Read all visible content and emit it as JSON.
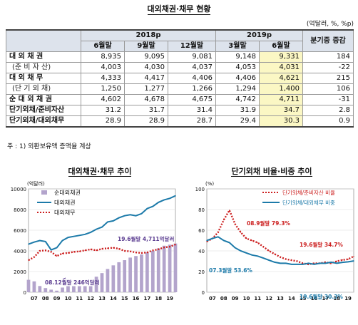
{
  "title": "대외채권·채무 현황",
  "unit": "(억달러, %, %p)",
  "table": {
    "head_years": [
      "2018p",
      "2019p"
    ],
    "head_last": "분기중 증감",
    "head_periods": [
      "6월말",
      "9월말",
      "12월말",
      "3월말",
      "6월말"
    ],
    "rows": [
      {
        "label": "대 외 채 권",
        "values": [
          "8,935",
          "9,095",
          "9,081",
          "9,148",
          "9,331"
        ],
        "change": "184",
        "kind": "main"
      },
      {
        "label": "(준 비 자 산)",
        "values": [
          "4,003",
          "4,030",
          "4,037",
          "4,053",
          "4,031"
        ],
        "change": "-22",
        "kind": "sub"
      },
      {
        "label": "대 외 채 무",
        "values": [
          "4,333",
          "4,417",
          "4,406",
          "4,406",
          "4,621"
        ],
        "change": "215",
        "kind": "main"
      },
      {
        "label": "(단 기 외 채)",
        "values": [
          "1,250",
          "1,277",
          "1,266",
          "1,294",
          "1,400"
        ],
        "change": "106",
        "kind": "sub"
      },
      {
        "label": "순 대 외 채 권",
        "values": [
          "4,602",
          "4,678",
          "4,675",
          "4,742",
          "4,711"
        ],
        "change": "-31",
        "kind": "main"
      },
      {
        "label": "단기외채/준비자산",
        "values": [
          "31.2",
          "31.7",
          "31.4",
          "31.9",
          "34.7"
        ],
        "change": "2.8",
        "kind": "main"
      },
      {
        "label": "단기외채/대외채무",
        "values": [
          "28.9",
          "28.9",
          "28.7",
          "29.4",
          "30.3"
        ],
        "change": "0.9",
        "kind": "main"
      }
    ]
  },
  "note": "주 : 1) 외환보유액 증액율 계상",
  "colors": {
    "bar": "#b3a4cc",
    "claims": "#1c7aa9",
    "debt": "#cc1f1f",
    "ratio_reserve": "#cc1f1f",
    "ratio_debt": "#1c7aa9",
    "highlight": "#fbf7c4",
    "header": "#dde3ec"
  },
  "chart_data": [
    {
      "type": "line",
      "title": "대외채권·채무 추이",
      "ylabel": "(억달러)",
      "ylim": [
        0,
        10000
      ],
      "yticks": [
        "0",
        "2000",
        "4000",
        "6000",
        "8000",
        "10000"
      ],
      "xticks": [
        "07",
        "08",
        "09",
        "10",
        "11",
        "12",
        "13",
        "14",
        "15",
        "16",
        "17",
        "18",
        "19"
      ],
      "x_range": [
        2006.5,
        2019.5
      ],
      "legend": [
        "순대외채권",
        "대외채권",
        "대외채무"
      ],
      "series": [
        {
          "name": "순대외채권",
          "style": "bar",
          "x": [
            2006.5,
            2007,
            2007.5,
            2008,
            2008.5,
            2009,
            2009.5,
            2010,
            2010.5,
            2011,
            2011.5,
            2012,
            2012.5,
            2013,
            2013.5,
            2014,
            2014.5,
            2015,
            2015.5,
            2016,
            2016.5,
            2017,
            2017.5,
            2018,
            2018.5,
            2019,
            2019.5
          ],
          "values": [
            1200,
            1050,
            600,
            400,
            246,
            150,
            450,
            600,
            700,
            800,
            700,
            1050,
            1500,
            1850,
            2250,
            2600,
            2900,
            3100,
            3350,
            3500,
            3650,
            3850,
            4000,
            4250,
            4500,
            4600,
            4711
          ]
        },
        {
          "name": "대외채권",
          "x": [
            2006.5,
            2007,
            2007.5,
            2008,
            2008.5,
            2009,
            2009.5,
            2010,
            2010.5,
            2011,
            2011.5,
            2012,
            2012.5,
            2013,
            2013.5,
            2014,
            2014.5,
            2015,
            2015.5,
            2016,
            2016.5,
            2017,
            2017.5,
            2018,
            2018.5,
            2019,
            2019.5
          ],
          "values": [
            4650,
            4850,
            5000,
            4900,
            4100,
            4300,
            5000,
            5300,
            5400,
            5500,
            5600,
            5800,
            6100,
            6300,
            6800,
            6900,
            7200,
            7400,
            7500,
            7400,
            7600,
            8100,
            8300,
            8700,
            8935,
            9081,
            9331
          ]
        },
        {
          "name": "대외채무",
          "x": [
            2006.5,
            2007,
            2007.5,
            2008,
            2008.5,
            2009,
            2009.5,
            2010,
            2010.5,
            2011,
            2011.5,
            2012,
            2012.5,
            2013,
            2013.5,
            2014,
            2014.5,
            2015,
            2015.5,
            2016,
            2016.5,
            2017,
            2017.5,
            2018,
            2018.5,
            2019,
            2019.5
          ],
          "values": [
            3100,
            3400,
            4000,
            4050,
            3900,
            3500,
            3750,
            3800,
            3900,
            3950,
            4050,
            4150,
            4050,
            4200,
            4250,
            4300,
            4200,
            4000,
            3950,
            3850,
            3800,
            3850,
            4050,
            4150,
            4333,
            4406,
            4621
          ]
        }
      ],
      "annotations": [
        "19.6월말 4,711억달러",
        "08.12월말 246억달러"
      ]
    },
    {
      "type": "line",
      "title": "단기외채 비율·비중 추이",
      "ylabel": "(%)",
      "ylim": [
        0,
        100
      ],
      "yticks": [
        "0",
        "20",
        "40",
        "60",
        "80",
        "100"
      ],
      "xticks": [
        "07",
        "08",
        "09",
        "10",
        "11",
        "12",
        "13",
        "14",
        "15",
        "16",
        "17",
        "18",
        "19"
      ],
      "x_range": [
        2006.5,
        2019.5
      ],
      "legend": [
        "단기외채/준비자산 비율",
        "단기외채/대외채무 비중"
      ],
      "series": [
        {
          "name": "단기외채/준비자산 비율",
          "x": [
            2006.5,
            2007,
            2007.5,
            2008,
            2008.5,
            2009,
            2009.5,
            2010,
            2010.5,
            2011,
            2011.5,
            2012,
            2012.5,
            2013,
            2013.5,
            2014,
            2014.5,
            2015,
            2015.5,
            2016,
            2016.5,
            2017,
            2017.5,
            2018,
            2018.5,
            2019,
            2019.5
          ],
          "values": [
            49,
            52,
            58,
            70,
            79.3,
            66,
            58,
            52,
            50,
            48,
            44,
            40,
            37,
            34,
            32,
            31,
            30,
            28,
            27,
            28,
            28,
            29,
            28,
            30,
            31.2,
            31.9,
            34.7
          ]
        },
        {
          "name": "단기외채/대외채무 비중",
          "x": [
            2006.5,
            2007,
            2007.5,
            2008,
            2008.5,
            2009,
            2009.5,
            2010,
            2010.5,
            2011,
            2011.5,
            2012,
            2012.5,
            2013,
            2013.5,
            2014,
            2014.5,
            2015,
            2015.5,
            2016,
            2016.5,
            2017,
            2017.5,
            2018,
            2018.5,
            2019,
            2019.5
          ],
          "values": [
            50,
            52,
            53.6,
            50,
            48,
            43,
            40,
            38,
            36,
            35,
            33,
            31,
            29,
            28,
            28,
            27,
            27,
            27,
            28,
            27,
            28,
            28,
            29,
            28,
            28.9,
            29.4,
            30.3
          ]
        }
      ],
      "annotations": [
        "08.9월말 79.3%",
        "07.3월말 53.6%",
        "19.6월말 34.7%",
        "19.6월말 30.3%"
      ]
    }
  ]
}
